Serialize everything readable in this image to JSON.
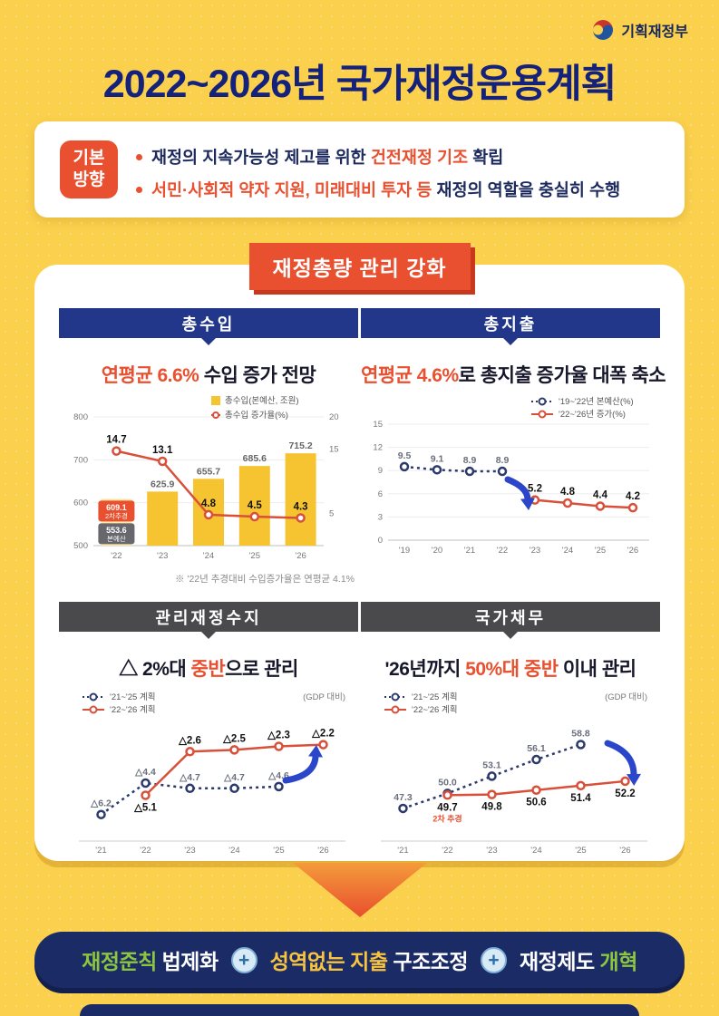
{
  "logo": {
    "text": "기획재정부"
  },
  "title": "2022~2026년 국가재정운용계획",
  "direction": {
    "badge_line1": "기본",
    "badge_line2": "방향",
    "bullets": [
      {
        "segments": [
          {
            "text": "재정의 지속가능성 제고를 위한 ",
            "color": "dark"
          },
          {
            "text": "건전재정 기조 ",
            "color": "red"
          },
          {
            "text": "확립",
            "color": "dark"
          }
        ]
      },
      {
        "segments": [
          {
            "text": "서민·사회적 약자 지원, 미래대비 투자 등",
            "color": "red"
          },
          {
            "text": " 재정의 역할을 충실히 수행",
            "color": "dark"
          }
        ]
      }
    ]
  },
  "section_banner": "재정총량 관리 강화",
  "panels": [
    {
      "id": "revenue",
      "header": "총수입",
      "subtitle_segments": [
        {
          "text": "연평균 6.6%",
          "color": "red"
        },
        {
          "text": " 수입 증가 전망",
          "color": "dark"
        }
      ],
      "footnote": "※ '22년 추경대비 수입증가율은 연평균 4.1%"
    },
    {
      "id": "expenditure",
      "header": "총지출",
      "subtitle_segments": [
        {
          "text": "연평균 4.6%",
          "color": "red"
        },
        {
          "text": "로 총지출 증가율 대폭 축소",
          "color": "dark"
        }
      ]
    },
    {
      "id": "balance",
      "header": "관리재정수지",
      "subtitle_segments": [
        {
          "text": "△ 2%대 ",
          "color": "dark"
        },
        {
          "text": "중반",
          "color": "red"
        },
        {
          "text": "으로 관리",
          "color": "dark"
        }
      ]
    },
    {
      "id": "debt",
      "header": "국가채무",
      "subtitle_segments": [
        {
          "text": "'26년까지 ",
          "color": "dark"
        },
        {
          "text": "50%대 중반",
          "color": "red"
        },
        {
          "text": " 이내 관리",
          "color": "dark"
        }
      ]
    }
  ],
  "chart_data": [
    {
      "id": "revenue",
      "type": "bar+line",
      "title": "연평균 6.6% 수입 증가 전망",
      "categories": [
        "'22",
        "'23",
        "'24",
        "'25",
        "'26"
      ],
      "bar_series": {
        "name": "총수입(본예산, 조원)",
        "values": [
          609.1,
          625.9,
          655.7,
          685.6,
          715.2
        ],
        "value_labels": [
          "",
          "625.9",
          "655.7",
          "685.6",
          "715.2"
        ]
      },
      "bar_22_boxes": [
        {
          "value": "609.1",
          "caption": "2차추경",
          "color": "red"
        },
        {
          "value": "553.6",
          "caption": "본예산",
          "color": "gray"
        }
      ],
      "line_series": {
        "name": "총수입 증가율(%)",
        "values": [
          14.7,
          13.1,
          4.8,
          4.5,
          4.3
        ],
        "value_labels": [
          "14.7",
          "13.1",
          "4.8",
          "4.5",
          "4.3"
        ]
      },
      "y_left": {
        "min": 500,
        "max": 800,
        "ticks": [
          800,
          700,
          600,
          500
        ]
      },
      "y_right": {
        "min": 0,
        "max": 20,
        "ticks": [
          20,
          15,
          5
        ]
      },
      "footnote": "※ '22년 추경대비 수입증가율은 연평균 4.1%"
    },
    {
      "id": "expenditure",
      "type": "line",
      "title": "연평균 4.6%로 총지출 증가율 대폭 축소",
      "categories": [
        "'19",
        "'20",
        "'21",
        "'22",
        "'23",
        "'24",
        "'25",
        "'26"
      ],
      "series": [
        {
          "name": "'19~'22년 본예산(%)",
          "style": "dotted-navy",
          "values": [
            9.5,
            9.1,
            8.9,
            8.9,
            null,
            null,
            null,
            null
          ],
          "value_labels": [
            "9.5",
            "9.1",
            "8.9",
            "8.9",
            "",
            "",
            "",
            ""
          ],
          "label_pos": "above"
        },
        {
          "name": "'22~'26년 증가(%)",
          "style": "solid-red",
          "values": [
            null,
            null,
            null,
            null,
            5.2,
            4.8,
            4.4,
            4.2
          ],
          "value_labels": [
            "",
            "",
            "",
            "",
            "5.2",
            "4.8",
            "4.4",
            "4.2"
          ],
          "label_pos": "above"
        }
      ],
      "y": {
        "min": 0,
        "max": 15,
        "ticks": [
          15,
          12,
          9,
          6,
          3,
          0
        ]
      },
      "legend_position": "top-right",
      "arrow": "down"
    },
    {
      "id": "balance",
      "type": "line",
      "title": "△ 2%대 중반으로 관리",
      "note": "(GDP 대비)",
      "categories": [
        "'21",
        "'22",
        "'23",
        "'24",
        "'25",
        "'26"
      ],
      "series": [
        {
          "name": "'21~'25 계획",
          "style": "dotted-navy",
          "values": [
            -6.2,
            -4.4,
            -4.7,
            -4.7,
            -4.6,
            null
          ],
          "value_labels": [
            "△6.2",
            "△4.4",
            "△4.7",
            "△4.7",
            "△4.6",
            ""
          ],
          "label_pos": "above"
        },
        {
          "name": "'22~'26 계획",
          "style": "solid-red",
          "values": [
            null,
            -5.1,
            -2.6,
            -2.5,
            -2.3,
            -2.2
          ],
          "value_labels": [
            "",
            "△5.1",
            "△2.6",
            "△2.5",
            "△2.3",
            "△2.2"
          ],
          "label_pos": "above",
          "label_overrides": {
            "1": "below"
          }
        }
      ],
      "y": {
        "min": -7.2,
        "max": -1.6
      },
      "legend_position": "top-left",
      "arrow": "up"
    },
    {
      "id": "debt",
      "type": "line",
      "title": "'26년까지 50%대 중반 이내 관리",
      "note": "(GDP 대비)",
      "categories": [
        "'21",
        "'22",
        "'23",
        "'24",
        "'25",
        "'26"
      ],
      "series": [
        {
          "name": "'21~'25 계획",
          "style": "dotted-navy",
          "values": [
            47.3,
            50.0,
            53.1,
            56.1,
            58.8,
            null
          ],
          "value_labels": [
            "47.3",
            "50.0",
            "53.1",
            "56.1",
            "58.8",
            ""
          ],
          "label_pos": "above"
        },
        {
          "name": "'22~'26 계획",
          "style": "solid-red",
          "values": [
            null,
            49.7,
            49.8,
            50.6,
            51.4,
            52.2
          ],
          "value_labels": [
            "",
            "49.7",
            "49.8",
            "50.6",
            "51.4",
            "52.2"
          ],
          "label_pos": "below",
          "sub_labels": {
            "1": "2차 추경"
          }
        }
      ],
      "y": {
        "min": 45.5,
        "max": 61
      },
      "legend_position": "top-left",
      "arrow": "down"
    }
  ],
  "footer": {
    "plus": "+",
    "items": [
      {
        "segments": [
          {
            "text": "재정준칙",
            "color": "green"
          },
          {
            "text": " 법제화",
            "color": "white"
          }
        ]
      },
      {
        "segments": [
          {
            "text": "성역없는 지출",
            "color": "yellow"
          },
          {
            "text": " 구조조정",
            "color": "white"
          }
        ]
      },
      {
        "segments": [
          {
            "text": "재정제도",
            "color": "white"
          },
          {
            "text": " 개혁",
            "color": "green"
          }
        ]
      }
    ]
  },
  "colors": {
    "background": "#FAD04D",
    "accent_red": "#E8502F",
    "navy": "#22378A",
    "header_gray": "#4A4A4C",
    "bar_gold": "#F7C431",
    "bar_light": "#FCE9A9",
    "line_red": "#D8503A",
    "dot_navy": "#2B3A6B",
    "arrow_blue": "#2B46C8",
    "footer_navy": "#1B2B66",
    "footer_green": "#8CC63E",
    "footer_yellow": "#F8C43F"
  }
}
